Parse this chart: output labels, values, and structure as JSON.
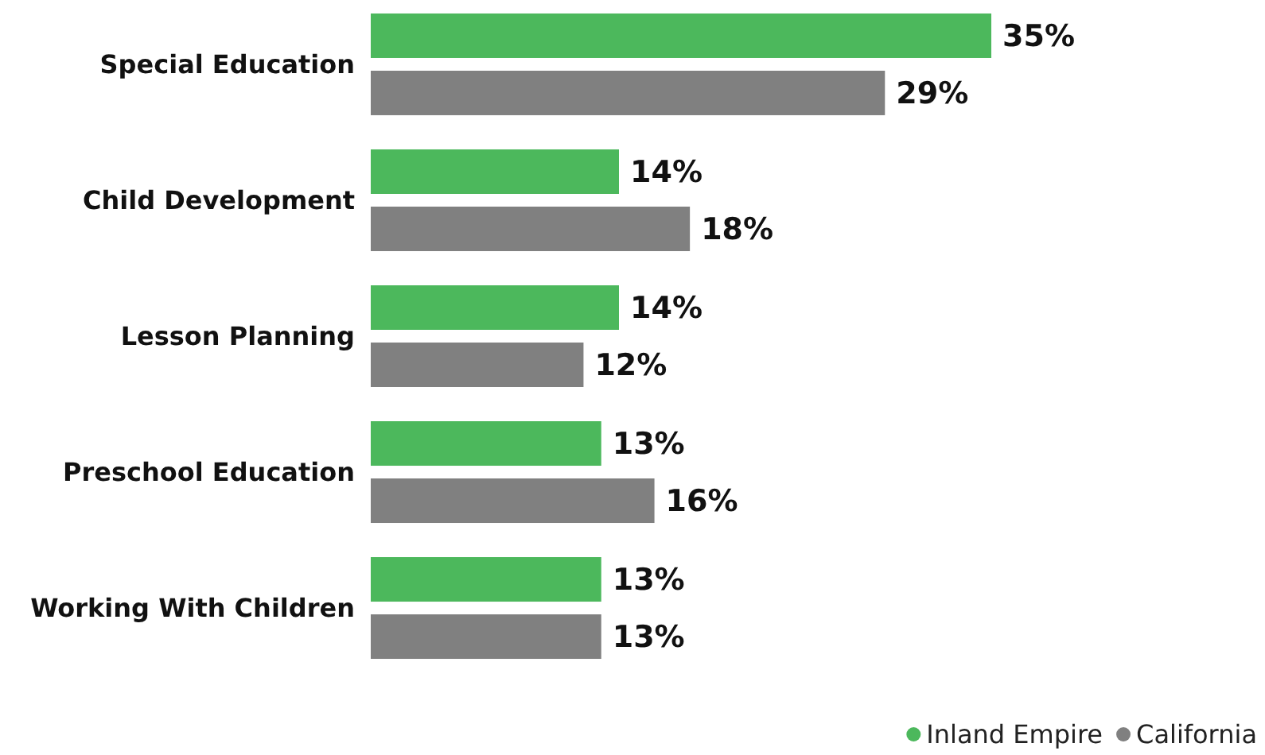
{
  "chart_data": {
    "type": "bar",
    "orientation": "horizontal",
    "categories": [
      "Special Education",
      "Child Development",
      "Lesson Planning",
      "Preschool Education",
      "Working With Children"
    ],
    "series": [
      {
        "name": "Inland Empire",
        "color": "#4cb85c",
        "values": [
          35,
          14,
          14,
          13,
          13
        ],
        "value_labels": [
          "35%",
          "14%",
          "14%",
          "13%",
          "13%"
        ]
      },
      {
        "name": "California",
        "color": "#808080",
        "values": [
          29,
          18,
          12,
          16,
          13
        ],
        "value_labels": [
          "29%",
          "18%",
          "12%",
          "16%",
          "13%"
        ]
      }
    ],
    "legend": "bottom right"
  }
}
